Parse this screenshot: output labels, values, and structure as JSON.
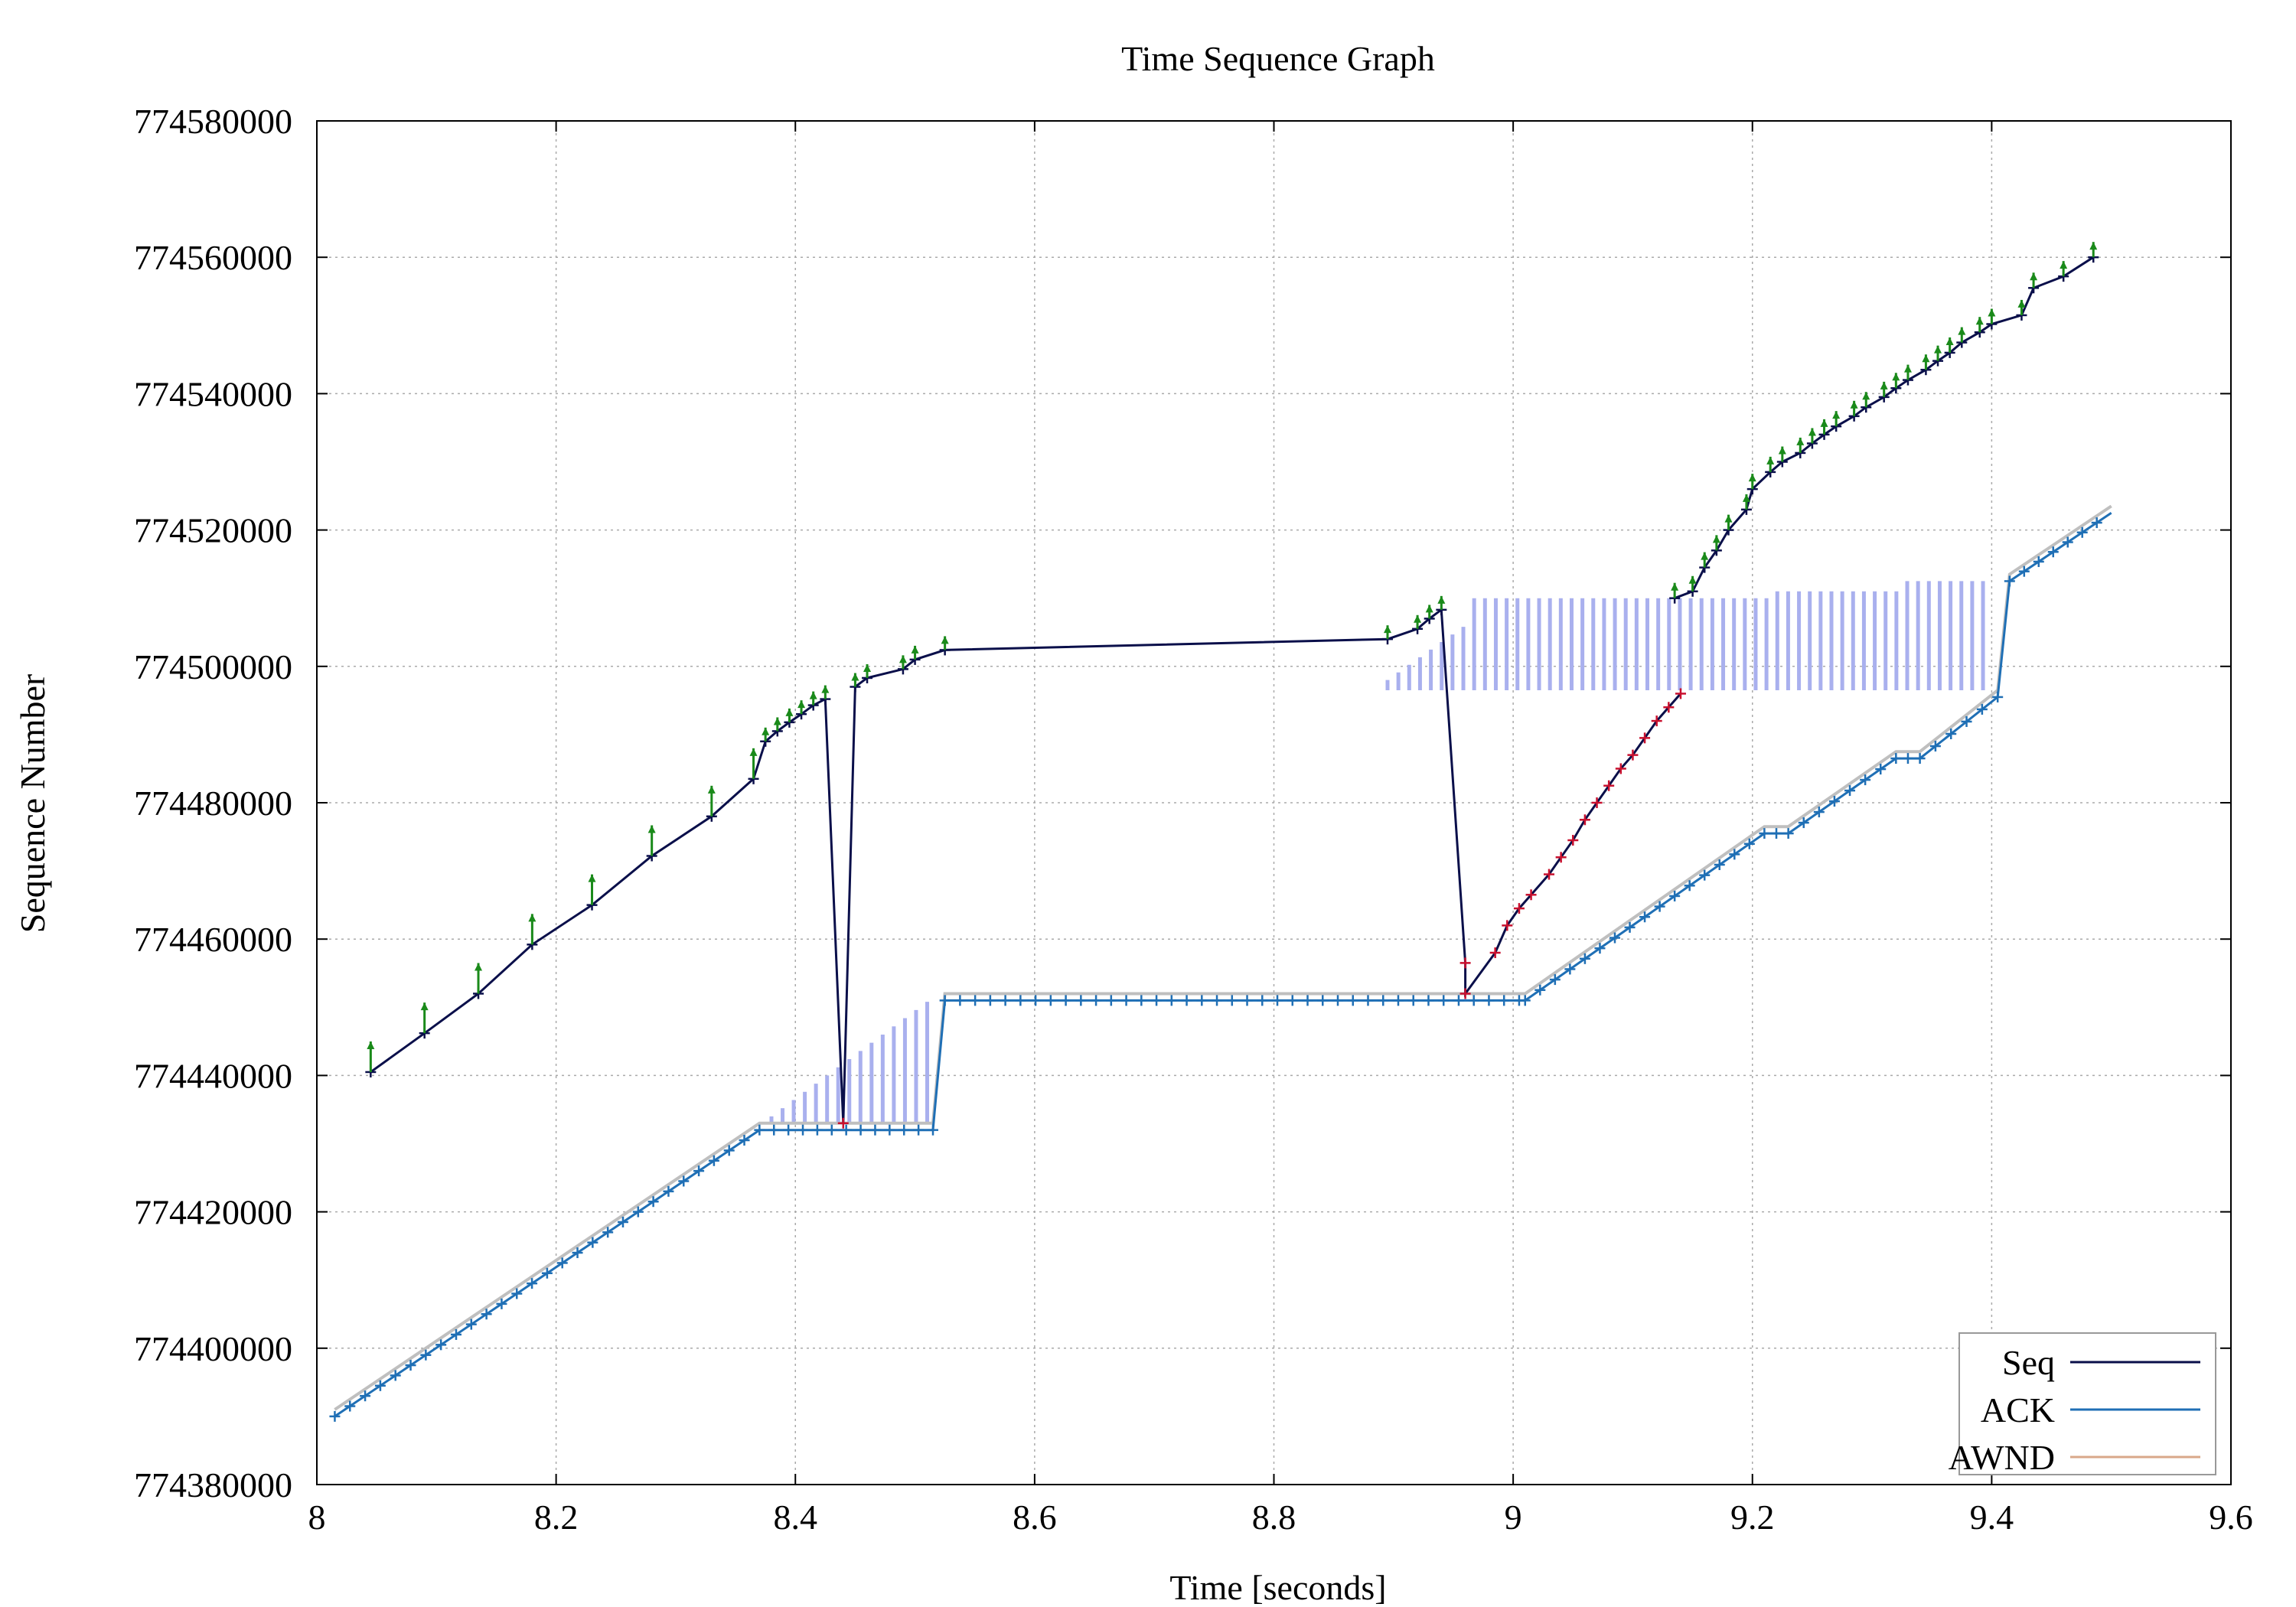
{
  "chart_data": {
    "type": "line",
    "title": "Time Sequence Graph",
    "xlabel": "Time [seconds]",
    "ylabel": "Sequence Number",
    "xlim": [
      8,
      9.6
    ],
    "ylim": [
      774380000,
      774580000
    ],
    "x_ticks": [
      "8",
      "8.2",
      "8.4",
      "8.6",
      "8.8",
      "9",
      "9.2",
      "9.4",
      "9.6"
    ],
    "y_ticks": [
      "774380000",
      "774400000",
      "774420000",
      "774440000",
      "774460000",
      "774480000",
      "774500000",
      "774520000",
      "774540000",
      "774560000",
      "774580000"
    ],
    "grid": true,
    "legend_position": "bottom-right",
    "legend": [
      {
        "name": "Seq",
        "color": "#0a0f4a"
      },
      {
        "name": "ACK",
        "color": "#1f6fb5"
      },
      {
        "name": "AWND",
        "color": "#d9a88a"
      }
    ],
    "series": [
      {
        "name": "Seq",
        "color": "#0a0f4a",
        "points": [
          [
            8.045,
            774440500
          ],
          [
            8.09,
            774446200
          ],
          [
            8.135,
            774452000
          ],
          [
            8.18,
            774459200
          ],
          [
            8.23,
            774465000
          ],
          [
            8.28,
            774472200
          ],
          [
            8.33,
            774478000
          ],
          [
            8.365,
            774483500
          ],
          [
            8.375,
            774489000
          ],
          [
            8.385,
            774490500
          ],
          [
            8.395,
            774491800
          ],
          [
            8.405,
            774493000
          ],
          [
            8.415,
            774494300
          ],
          [
            8.425,
            774495200
          ],
          [
            8.44,
            774433000
          ],
          [
            8.45,
            774497000
          ],
          [
            8.46,
            774498300
          ],
          [
            8.49,
            774499600
          ],
          [
            8.5,
            774501000
          ],
          [
            8.525,
            774502400
          ],
          [
            8.895,
            774504000
          ],
          [
            8.92,
            774505500
          ],
          [
            8.93,
            774507000
          ],
          [
            8.94,
            774508300
          ],
          [
            8.96,
            774456500
          ],
          [
            8.96,
            774452000
          ],
          [
            8.985,
            774458000
          ],
          [
            8.995,
            774462000
          ],
          [
            9.005,
            774464500
          ],
          [
            9.015,
            774466500
          ],
          [
            9.03,
            774469500
          ],
          [
            9.04,
            774472000
          ],
          [
            9.05,
            774474500
          ],
          [
            9.06,
            774477500
          ],
          [
            9.07,
            774480000
          ],
          [
            9.08,
            774482500
          ],
          [
            9.09,
            774485000
          ],
          [
            9.1,
            774487000
          ],
          [
            9.11,
            774489500
          ],
          [
            9.12,
            774492000
          ],
          [
            9.13,
            774494000
          ],
          [
            9.14,
            774496000
          ]
        ],
        "points_upper": [
          [
            9.135,
            774510000
          ],
          [
            9.15,
            774511000
          ],
          [
            9.16,
            774514500
          ],
          [
            9.17,
            774517000
          ],
          [
            9.18,
            774520000
          ],
          [
            9.195,
            774523000
          ],
          [
            9.2,
            774526000
          ],
          [
            9.215,
            774528500
          ],
          [
            9.225,
            774530000
          ],
          [
            9.24,
            774531300
          ],
          [
            9.25,
            774532700
          ],
          [
            9.26,
            774534000
          ],
          [
            9.27,
            774535200
          ],
          [
            9.285,
            774536700
          ],
          [
            9.295,
            774538000
          ],
          [
            9.31,
            774539500
          ],
          [
            9.32,
            774540800
          ],
          [
            9.33,
            774542000
          ],
          [
            9.345,
            774543500
          ],
          [
            9.355,
            774544800
          ],
          [
            9.365,
            774546000
          ],
          [
            9.375,
            774547500
          ],
          [
            9.39,
            774549000
          ],
          [
            9.4,
            774550200
          ],
          [
            9.425,
            774551500
          ],
          [
            9.435,
            774555500
          ],
          [
            9.46,
            774557200
          ],
          [
            9.485,
            774560000
          ]
        ]
      },
      {
        "name": "ACK",
        "color": "#1f6fb5",
        "points": [
          [
            8.015,
            774390000
          ],
          [
            8.37,
            774432000
          ],
          [
            8.515,
            774432000
          ],
          [
            8.525,
            774451000
          ],
          [
            9.005,
            774451000
          ],
          [
            9.01,
            774451000
          ],
          [
            9.21,
            774475500
          ],
          [
            9.23,
            774475500
          ],
          [
            9.32,
            774486500
          ],
          [
            9.34,
            774486500
          ],
          [
            9.405,
            774495500
          ],
          [
            9.415,
            774512500
          ],
          [
            9.5,
            774522500
          ]
        ]
      },
      {
        "name": "AWND",
        "color": "#d9a88a",
        "points": [
          [
            8.015,
            774391000
          ],
          [
            8.37,
            774433000
          ],
          [
            8.515,
            774433000
          ],
          [
            8.525,
            774452000
          ],
          [
            9.005,
            774452000
          ],
          [
            9.01,
            774452000
          ],
          [
            9.21,
            774476500
          ],
          [
            9.23,
            774476500
          ],
          [
            9.32,
            774487500
          ],
          [
            9.34,
            774487500
          ],
          [
            9.405,
            774496500
          ],
          [
            9.415,
            774513500
          ],
          [
            9.5,
            774523500
          ]
        ]
      }
    ]
  }
}
